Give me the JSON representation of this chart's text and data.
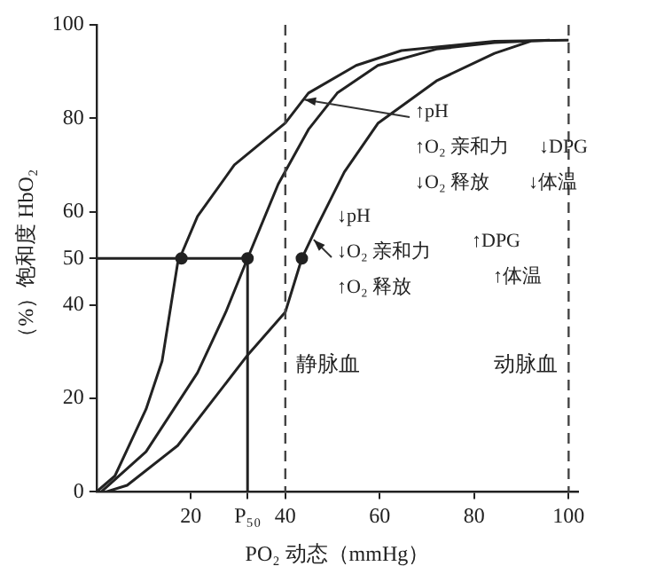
{
  "chart_data": {
    "type": "line",
    "xlabel": "PO₂ 动态（mmHg）",
    "ylabel": "（%）饱和度 HbO₂",
    "xlim": [
      0,
      102
    ],
    "ylim": [
      0,
      100
    ],
    "xticks": [
      20,
      {
        "value": 32,
        "label": "P₅₀"
      },
      40,
      60,
      80,
      100
    ],
    "yticks": [
      0,
      20,
      40,
      50,
      60,
      80,
      100
    ],
    "grid": false,
    "legend": false,
    "marker": "none",
    "line_style": "solid",
    "series": [
      {
        "color": "#222222",
        "x": [
          0,
          3.9,
          10.5,
          13.9,
          17.2,
          21.4,
          29.2,
          40,
          44.9,
          55,
          64.6,
          84.3,
          100
        ],
        "values": [
          0,
          3.4,
          17.7,
          28,
          49,
          59,
          70,
          79,
          85.4,
          91.3,
          94.5,
          96.5,
          96.7
        ]
      },
      {
        "color": "#222222",
        "x": [
          1,
          10.5,
          21.4,
          27.4,
          32,
          38.5,
          44.9,
          51,
          59.6,
          72,
          84.3,
          96
        ],
        "values": [
          0,
          8.6,
          25.5,
          38.5,
          50,
          65.9,
          77.6,
          85.4,
          91.3,
          94.8,
          96.2,
          96.7
        ]
      },
      {
        "color": "#222222",
        "x": [
          2,
          6.5,
          17.2,
          32.1,
          40,
          43.5,
          46.7,
          52.5,
          59.6,
          72,
          84.3,
          92
        ],
        "values": [
          0,
          1.4,
          9.9,
          29.4,
          38.5,
          50,
          56.8,
          68.5,
          78.9,
          88,
          93.9,
          96.5
        ]
      },
      {
        "color": "#222222",
        "x": [
          0,
          32,
          32
        ],
        "values": [
          50,
          50,
          0
        ]
      },
      {
        "type": "scatter",
        "marker": "circle",
        "color": "#222222",
        "x": [
          18,
          32,
          43.5
        ],
        "values": [
          50,
          50,
          50
        ]
      }
    ],
    "ref_lines": [
      {
        "axis": "x",
        "value": 40,
        "label": "静脉血",
        "line_style": "dashed",
        "color": "#444444"
      },
      {
        "axis": "x",
        "value": 100,
        "label": "动脉血",
        "line_style": "dashed",
        "color": "#444444"
      }
    ],
    "annotations": [
      {
        "text": "↑pH",
        "x": 44,
        "y": 84
      },
      "↑O₂ 亲和力",
      "↓O₂ 释放",
      "↓DPG",
      "↓体温",
      "↓pH",
      {
        "text": "↓O₂ 亲和力",
        "x": 46,
        "y": 54
      },
      "↑O₂ 释放",
      "↑DPG",
      "↑体温"
    ]
  }
}
